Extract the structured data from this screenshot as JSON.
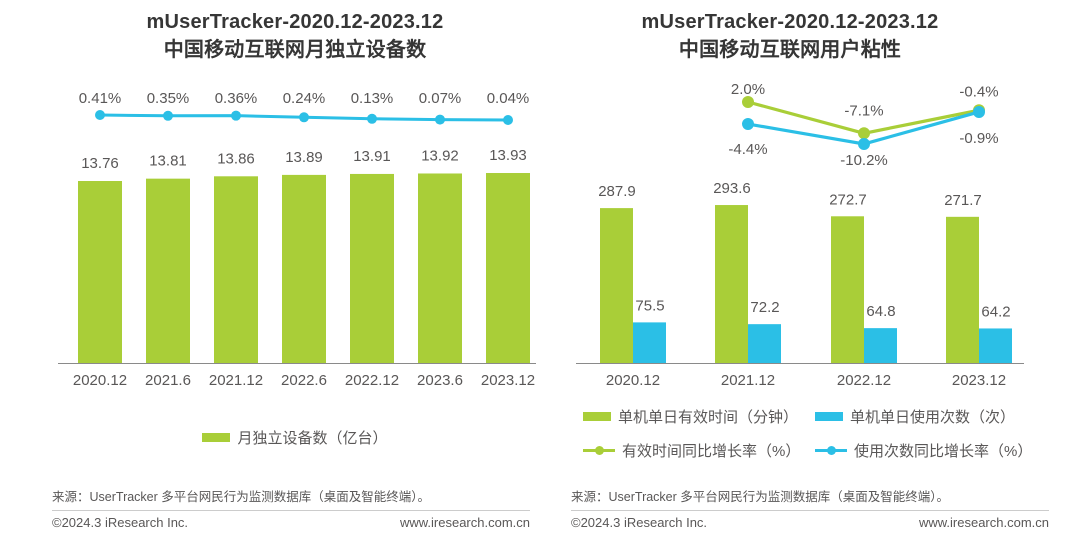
{
  "colors": {
    "green": "#A9CE38",
    "blue": "#2BBFE6",
    "text_gray": "#595757",
    "title": "#363636",
    "axis": "#8A8A8A",
    "divider": "#CCCCCC"
  },
  "footer": {
    "source": "来源：UserTracker 多平台网民行为监测数据库（桌面及智能终端）。",
    "copyright": "©2024.3 iResearch Inc.",
    "website": "www.iresearch.com.cn"
  },
  "chart_data": [
    {
      "type": "bar+line",
      "title_line1": "mUserTracker-2020.12-2023.12",
      "title_line2": "中国移动互联网月独立设备数",
      "categories": [
        "2020.12",
        "2021.6",
        "2021.12",
        "2022.6",
        "2022.12",
        "2023.6",
        "2023.12"
      ],
      "series": [
        {
          "name": "月独立设备数（亿台）",
          "type": "bar",
          "color": "green",
          "values": [
            13.76,
            13.81,
            13.86,
            13.89,
            13.91,
            13.92,
            13.93
          ],
          "labels": [
            "13.76",
            "13.81",
            "13.86",
            "13.89",
            "13.91",
            "13.92",
            "13.93"
          ]
        },
        {
          "name": "",
          "type": "line",
          "color": "blue",
          "values": [
            0.41,
            0.35,
            0.36,
            0.24,
            0.13,
            0.07,
            0.04
          ],
          "labels": [
            "0.41%",
            "0.35%",
            "0.36%",
            "0.24%",
            "0.13%",
            "0.07%",
            "0.04%"
          ]
        }
      ],
      "legend": [
        {
          "swatch": "bar",
          "color": "green",
          "label": "月独立设备数（亿台）"
        }
      ],
      "value_axis_visible": false,
      "grid": false,
      "legend_position": "bottom"
    },
    {
      "type": "grouped-bar+line",
      "title_line1": "mUserTracker-2020.12-2023.12",
      "title_line2": "中国移动互联网用户粘性",
      "categories": [
        "2020.12",
        "2021.12",
        "2022.12",
        "2023.12"
      ],
      "series": [
        {
          "name": "单机单日有效时间（分钟）",
          "type": "bar",
          "color": "green",
          "values": [
            287.9,
            293.6,
            272.7,
            271.7
          ],
          "labels": [
            "287.9",
            "293.6",
            "272.7",
            "271.7"
          ]
        },
        {
          "name": "单机单日使用次数（次）",
          "type": "bar",
          "color": "blue",
          "values": [
            75.5,
            72.2,
            64.8,
            64.2
          ],
          "labels": [
            "75.5",
            "72.2",
            "64.8",
            "64.2"
          ]
        },
        {
          "name": "有效时间同比增长率（%）",
          "type": "line",
          "color": "green",
          "values": [
            null,
            2.0,
            -7.1,
            -0.4
          ],
          "labels": [
            null,
            "2.0%",
            "-7.1%",
            "-0.4%"
          ]
        },
        {
          "name": "使用次数同比增长率（%）",
          "type": "line",
          "color": "blue",
          "values": [
            null,
            -4.4,
            -10.2,
            -0.9
          ],
          "labels": [
            null,
            "-4.4%",
            "-10.2%",
            "-0.9%"
          ]
        }
      ],
      "legend": [
        {
          "swatch": "bar",
          "color": "green",
          "label": "单机单日有效时间（分钟）"
        },
        {
          "swatch": "bar",
          "color": "blue",
          "label": "单机单日使用次数（次）"
        },
        {
          "swatch": "line",
          "color": "green",
          "label": "有效时间同比增长率（%）"
        },
        {
          "swatch": "line",
          "color": "blue",
          "label": "使用次数同比增长率（%）"
        }
      ],
      "value_axis_visible": false,
      "grid": false,
      "legend_position": "bottom"
    }
  ]
}
